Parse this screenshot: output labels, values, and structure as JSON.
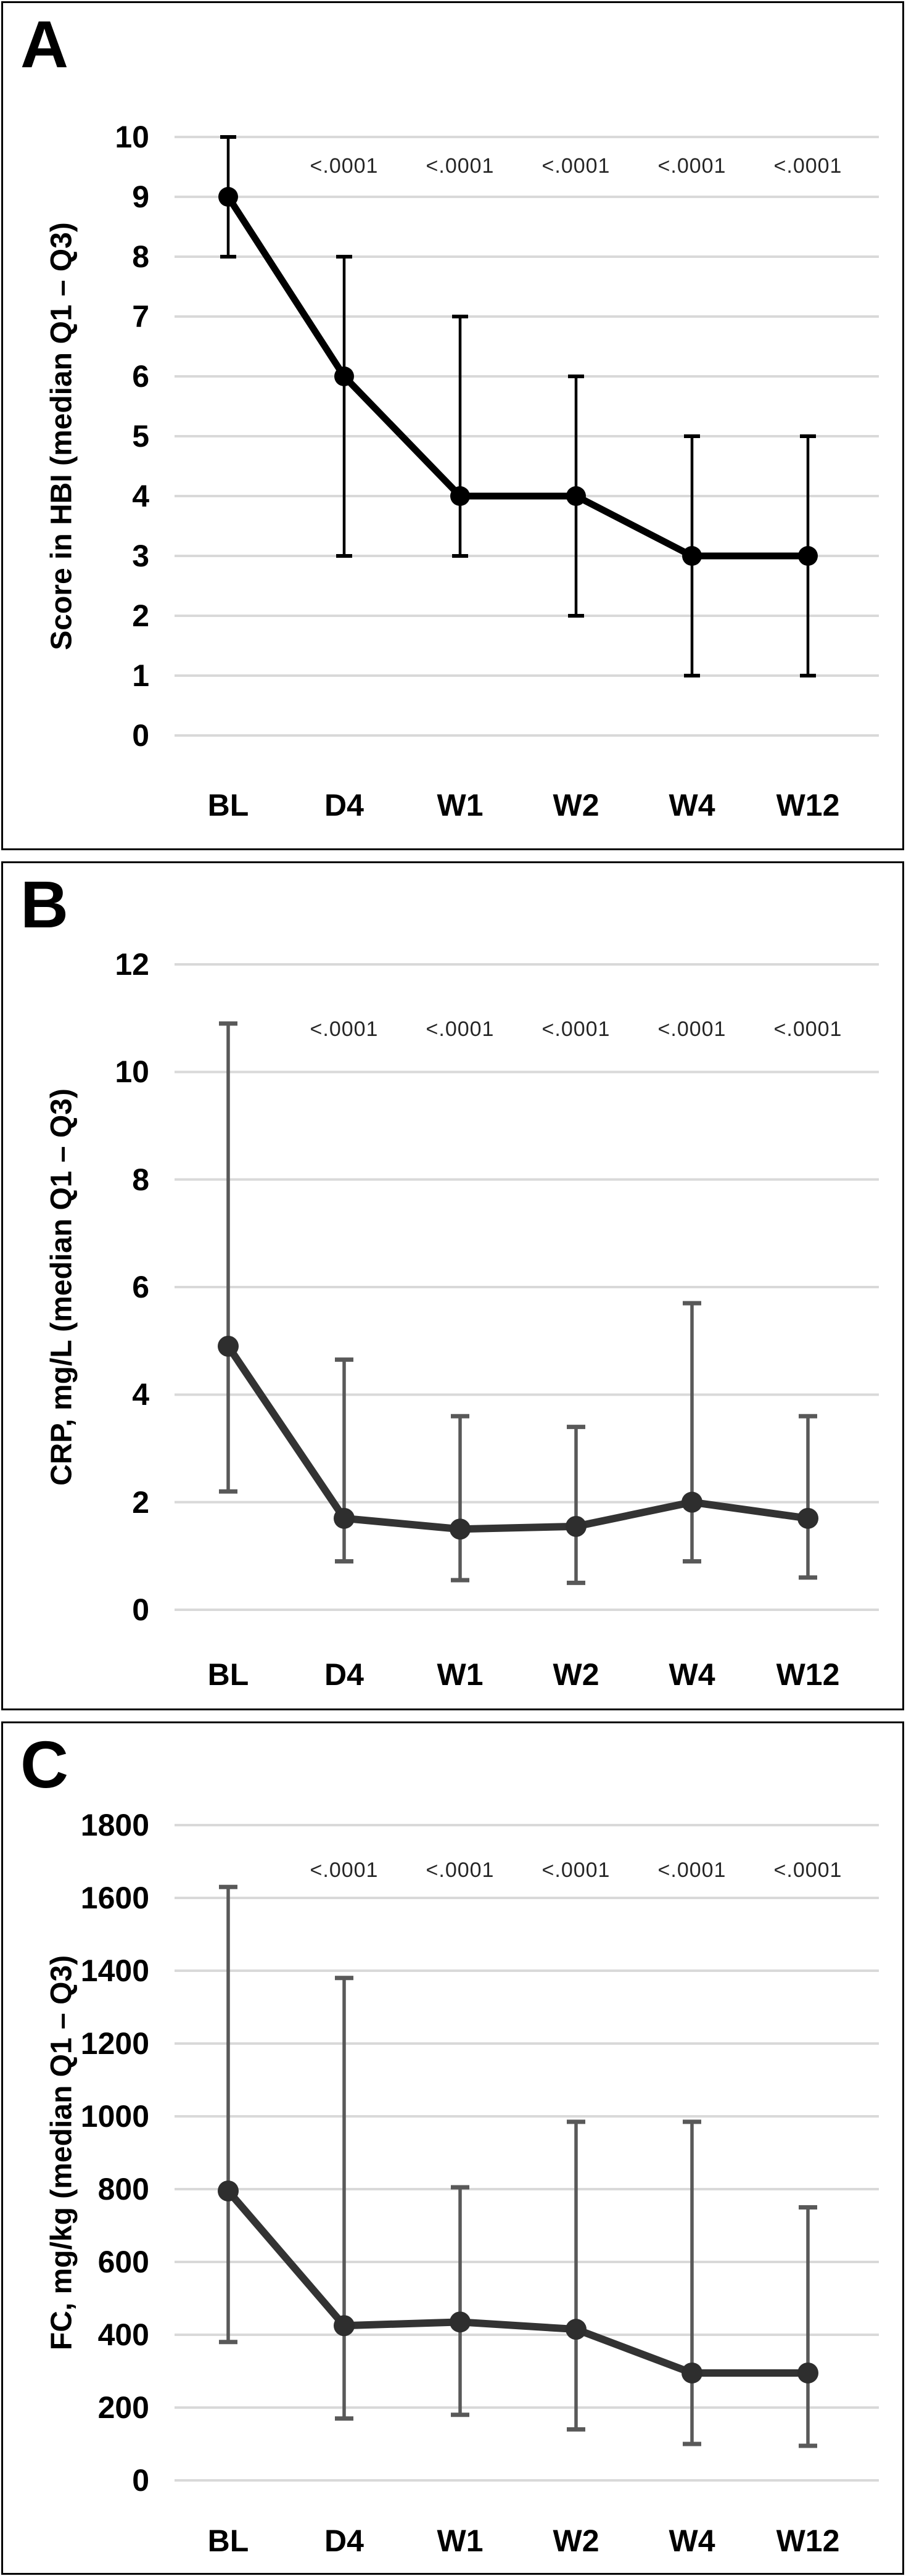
{
  "figure": {
    "background": "#ffffff",
    "panel_border_color": "#000000",
    "gridline_color": "#d9d9d9",
    "p_value_text_color": "#262626"
  },
  "chart_data": [
    {
      "type": "line",
      "title": "A",
      "ylabel": "Score in HBI (median Q1 – Q3)",
      "xlabel": "",
      "categories": [
        "BL",
        "D4",
        "W1",
        "W2",
        "W4",
        "W12"
      ],
      "series": [
        {
          "name": "median",
          "values": [
            9,
            6,
            4,
            4,
            3,
            3
          ]
        },
        {
          "name": "Q1 (error bar lower)",
          "values": [
            8,
            3,
            3,
            2,
            1,
            1
          ]
        },
        {
          "name": "Q3 (error bar upper)",
          "values": [
            10,
            8,
            7,
            6,
            5,
            5
          ]
        }
      ],
      "annotations": {
        "p_values": [
          "<.0001",
          "<.0001",
          "<.0001",
          "<.0001",
          "<.0001"
        ],
        "applies_to": [
          "D4",
          "W1",
          "W2",
          "W4",
          "W12"
        ]
      },
      "ylim": [
        0,
        10
      ],
      "ytick_step": 1,
      "ytick_labels": [
        "0",
        "1",
        "2",
        "3",
        "4",
        "5",
        "6",
        "7",
        "8",
        "9",
        "10"
      ],
      "grid": true,
      "legend": "none",
      "colors": {
        "line": "#000000",
        "marker": "#000000",
        "error_bar": "#000000"
      }
    },
    {
      "type": "line",
      "title": "B",
      "ylabel": "CRP, mg/L (median Q1 – Q3)",
      "xlabel": "",
      "categories": [
        "BL",
        "D4",
        "W1",
        "W2",
        "W4",
        "W12"
      ],
      "series": [
        {
          "name": "median",
          "values": [
            4.9,
            1.7,
            1.5,
            1.55,
            2.0,
            1.7
          ]
        },
        {
          "name": "Q1 (error bar lower)",
          "values": [
            2.2,
            0.9,
            0.55,
            0.5,
            0.9,
            0.6
          ]
        },
        {
          "name": "Q3 (error bar upper)",
          "values": [
            10.9,
            4.65,
            3.6,
            3.4,
            5.7,
            3.6
          ]
        }
      ],
      "annotations": {
        "p_values": [
          "<.0001",
          "<.0001",
          "<.0001",
          "<.0001",
          "<.0001"
        ],
        "applies_to": [
          "D4",
          "W1",
          "W2",
          "W4",
          "W12"
        ]
      },
      "ylim": [
        0,
        12
      ],
      "ytick_step": 2,
      "ytick_labels": [
        "0",
        "2",
        "4",
        "6",
        "8",
        "10",
        "12"
      ],
      "grid": true,
      "legend": "none",
      "colors": {
        "line": "#333333",
        "marker": "#2e2e2e",
        "error_bar": "#595959"
      }
    },
    {
      "type": "line",
      "title": "C",
      "ylabel": "FC, mg/kg (median Q1 – Q3)",
      "xlabel": "",
      "categories": [
        "BL",
        "D4",
        "W1",
        "W2",
        "W4",
        "W12"
      ],
      "series": [
        {
          "name": "median",
          "values": [
            795,
            425,
            435,
            415,
            295,
            295
          ]
        },
        {
          "name": "Q1 (error bar lower)",
          "values": [
            380,
            170,
            180,
            140,
            100,
            95
          ]
        },
        {
          "name": "Q3 (error bar upper)",
          "values": [
            1630,
            1380,
            805,
            985,
            985,
            750
          ]
        }
      ],
      "annotations": {
        "p_values": [
          "<.0001",
          "<.0001",
          "<.0001",
          "<.0001",
          "<.0001"
        ],
        "applies_to": [
          "D4",
          "W1",
          "W2",
          "W4",
          "W12"
        ]
      },
      "ylim": [
        0,
        1800
      ],
      "ytick_step": 200,
      "ytick_labels": [
        "0",
        "200",
        "400",
        "600",
        "800",
        "1000",
        "1200",
        "1400",
        "1600",
        "1800"
      ],
      "grid": true,
      "legend": "none",
      "colors": {
        "line": "#333333",
        "marker": "#2e2e2e",
        "error_bar": "#595959"
      }
    }
  ]
}
